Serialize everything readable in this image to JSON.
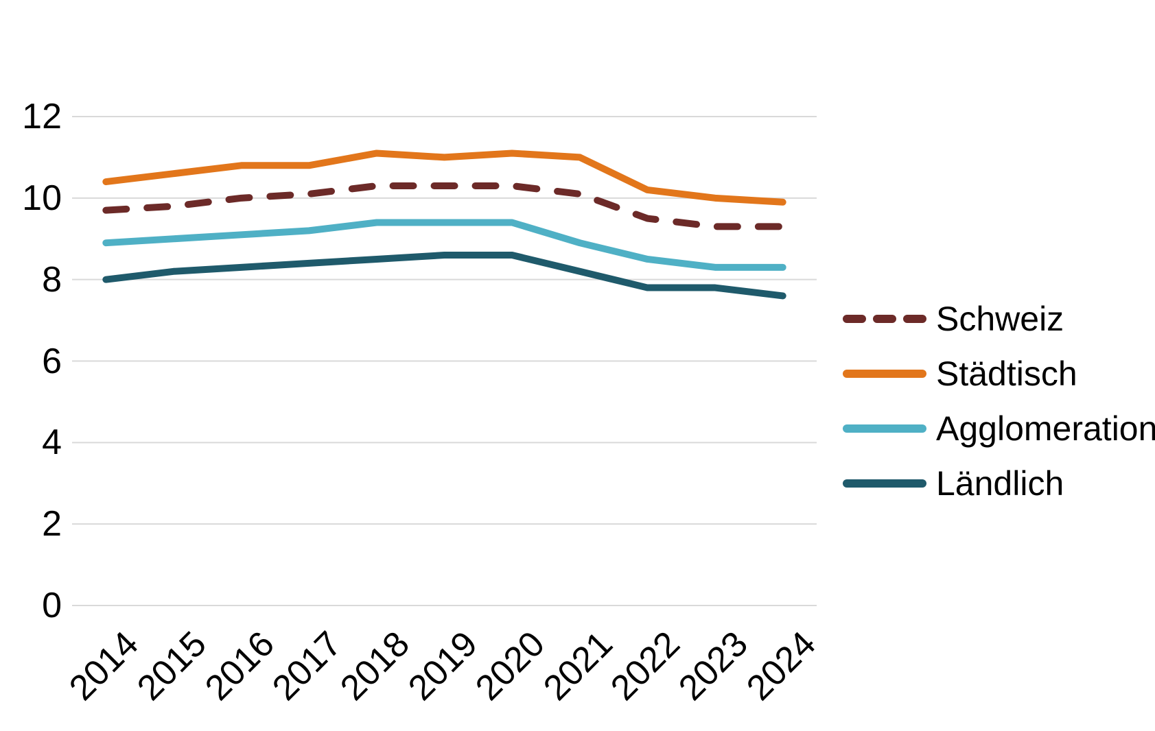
{
  "chart_data": {
    "type": "line",
    "title": "",
    "xlabel": "",
    "ylabel": "",
    "categories": [
      "2014",
      "2015",
      "2016",
      "2017",
      "2018",
      "2019",
      "2020",
      "2021",
      "2022",
      "2023",
      "2024"
    ],
    "series": [
      {
        "name": "Schweiz",
        "color": "#6C2A28",
        "style": "dashed",
        "values": [
          9.7,
          9.8,
          10.0,
          10.1,
          10.3,
          10.3,
          10.3,
          10.1,
          9.5,
          9.3,
          9.3
        ]
      },
      {
        "name": "Städtisch",
        "color": "#E2761B",
        "style": "solid",
        "values": [
          10.4,
          10.6,
          10.8,
          10.8,
          11.1,
          11.0,
          11.1,
          11.0,
          10.2,
          10.0,
          9.9
        ]
      },
      {
        "name": "Agglomeration",
        "color": "#4FB0C5",
        "style": "solid",
        "values": [
          8.9,
          9.0,
          9.1,
          9.2,
          9.4,
          9.4,
          9.4,
          8.9,
          8.5,
          8.3,
          8.3
        ]
      },
      {
        "name": "Ländlich",
        "color": "#1F5A6B",
        "style": "solid",
        "values": [
          8.0,
          8.2,
          8.3,
          8.4,
          8.5,
          8.6,
          8.6,
          8.2,
          7.8,
          7.8,
          7.6
        ]
      }
    ],
    "ylim": [
      0,
      12
    ],
    "y_ticks": [
      0,
      2,
      4,
      6,
      8,
      10,
      12
    ],
    "grid": "horizontal",
    "gridline_color": "#D9D9D9",
    "text_color": "#000000",
    "legend_position": "right",
    "legend_order": [
      "Schweiz",
      "Städtisch",
      "Agglomeration",
      "Ländlich"
    ]
  }
}
